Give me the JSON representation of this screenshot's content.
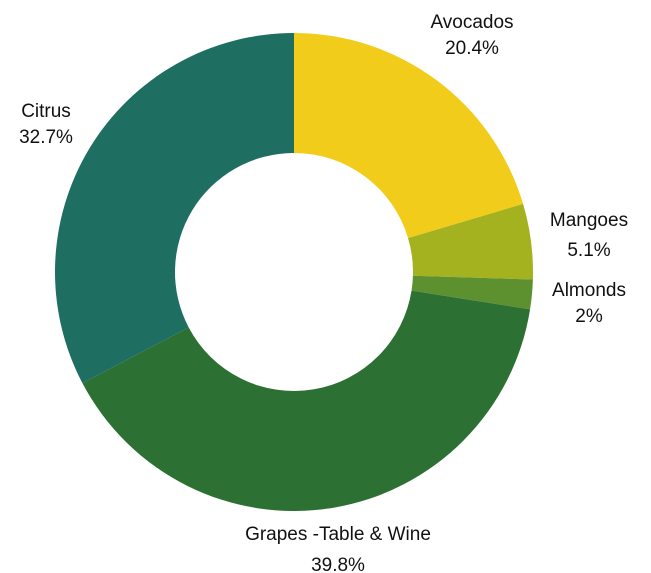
{
  "chart_data": {
    "type": "pie",
    "variant": "donut",
    "title": "",
    "slices": [
      {
        "name": "Avocados",
        "value": 20.4,
        "label": "20.4%",
        "color": "#F2CC1A"
      },
      {
        "name": "Mangoes",
        "value": 5.1,
        "label": "5.1%",
        "color": "#A5B21F"
      },
      {
        "name": "Almonds",
        "value": 2.0,
        "label": "2%",
        "color": "#5D9130"
      },
      {
        "name": "Grapes -Table & Wine",
        "value": 39.8,
        "label": "39.8%",
        "color": "#2C7033"
      },
      {
        "name": "Citrus",
        "value": 32.7,
        "label": "32.7%",
        "color": "#1E6E62"
      }
    ],
    "start": "top",
    "direction": "clockwise",
    "legend": "none"
  }
}
